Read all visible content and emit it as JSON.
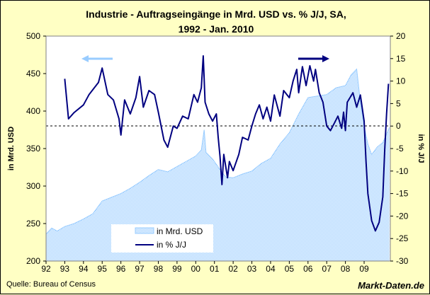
{
  "chart_data": {
    "type": "line",
    "title": "Industrie - Auftragseingänge in Mrd. USD vs. % J/J, SA,",
    "subtitle": "1992 - Jan. 2010",
    "ylabel_left": "in Mrd. USD",
    "ylabel_right": "in % J/J",
    "ylim_left": [
      200,
      500
    ],
    "ylim_right": [
      -30,
      20
    ],
    "yticks_left": [
      "500",
      "450",
      "400",
      "350",
      "300",
      "250",
      "200"
    ],
    "yticks_right": [
      "20",
      "15",
      "10",
      "5",
      "0",
      "-5",
      "-10",
      "-15",
      "-20",
      "-25",
      "-30"
    ],
    "xlim": [
      1992,
      2010.4
    ],
    "xticks": [
      "92",
      "93",
      "94",
      "95",
      "96",
      "97",
      "98",
      "99",
      "00",
      "01",
      "02",
      "03",
      "04",
      "05",
      "06",
      "07",
      "08",
      "09"
    ],
    "reference_line_right": 0,
    "legend": "bottom-left",
    "series": [
      {
        "name": "in Mrd. USD",
        "axis": "left",
        "style": "area",
        "color": "#99CCFF",
        "x": [
          1992.0,
          1992.3,
          1992.6,
          1993.0,
          1993.5,
          1994.0,
          1994.5,
          1995.0,
          1995.5,
          1996.0,
          1996.5,
          1997.0,
          1997.5,
          1998.0,
          1998.5,
          1999.0,
          1999.5,
          2000.0,
          2000.3,
          2000.45,
          2000.55,
          2000.9,
          2001.3,
          2001.6,
          2002.0,
          2002.5,
          2003.0,
          2003.5,
          2004.0,
          2004.5,
          2005.0,
          2005.5,
          2006.0,
          2006.5,
          2007.0,
          2007.5,
          2008.0,
          2008.3,
          2008.6,
          2008.8,
          2009.0,
          2009.2,
          2009.4,
          2009.7,
          2010.0,
          2010.35
        ],
        "values": [
          236,
          244,
          240,
          246,
          250,
          256,
          263,
          280,
          285,
          290,
          297,
          305,
          314,
          322,
          319,
          326,
          333,
          340,
          348,
          375,
          345,
          336,
          322,
          312,
          311,
          316,
          320,
          330,
          337,
          356,
          371,
          396,
          418,
          420,
          422,
          431,
          434,
          448,
          456,
          412,
          380,
          356,
          342,
          352,
          358,
          378
        ]
      },
      {
        "name": "in % J/J",
        "axis": "right",
        "style": "line",
        "color": "#000080",
        "x": [
          1993.0,
          1993.2,
          1993.5,
          1994.0,
          1994.3,
          1994.8,
          1995.0,
          1995.3,
          1995.6,
          1995.9,
          1996.0,
          1996.2,
          1996.5,
          1996.8,
          1997.0,
          1997.2,
          1997.5,
          1997.8,
          1998.0,
          1998.3,
          1998.5,
          1998.8,
          1999.0,
          1999.3,
          1999.6,
          1999.9,
          2000.1,
          2000.3,
          2000.4,
          2000.5,
          2000.7,
          2000.9,
          2001.1,
          2001.2,
          2001.3,
          2001.4,
          2001.5,
          2001.7,
          2001.8,
          2002.0,
          2002.3,
          2002.5,
          2002.8,
          2003.0,
          2003.2,
          2003.4,
          2003.6,
          2003.8,
          2004.0,
          2004.2,
          2004.5,
          2004.7,
          2005.0,
          2005.2,
          2005.4,
          2005.5,
          2005.7,
          2005.9,
          2006.1,
          2006.3,
          2006.4,
          2006.6,
          2006.8,
          2007.0,
          2007.2,
          2007.4,
          2007.6,
          2007.8,
          2007.9,
          2008.0,
          2008.1,
          2008.4,
          2008.6,
          2008.8,
          2009.0,
          2009.1,
          2009.2,
          2009.4,
          2009.6,
          2009.8,
          2010.0,
          2010.1,
          2010.2,
          2010.3
        ],
        "values": [
          10.5,
          1.6,
          3,
          4.7,
          7,
          9.7,
          12.9,
          7,
          5.8,
          1.6,
          -2,
          5.8,
          2.7,
          6.3,
          11,
          4.2,
          7.9,
          7,
          3.1,
          -3.1,
          -4.7,
          0,
          -0.5,
          2.2,
          1.6,
          7,
          5.3,
          8.5,
          15.6,
          5.3,
          2.7,
          1.1,
          2.7,
          -2.5,
          -6.8,
          -13,
          -6.3,
          -11.5,
          -7.9,
          -9.9,
          -6.3,
          -2.5,
          -3.1,
          0,
          2.7,
          4.7,
          1.6,
          4.2,
          1.1,
          6.9,
          2.2,
          7.9,
          6.3,
          10,
          12.6,
          7.4,
          13.2,
          9,
          13.4,
          10,
          12.6,
          7.4,
          5.3,
          0,
          -1,
          0.6,
          2.2,
          -0.5,
          3.1,
          -1,
          5.3,
          7.4,
          4.2,
          6.9,
          1.1,
          -7.9,
          -15,
          -21,
          -23.3,
          -21.4,
          -15.7,
          -5.2,
          2.7,
          9.4
        ]
      }
    ],
    "source": "Quelle: Bureau of Census",
    "brand": "Markt-Daten.de"
  }
}
